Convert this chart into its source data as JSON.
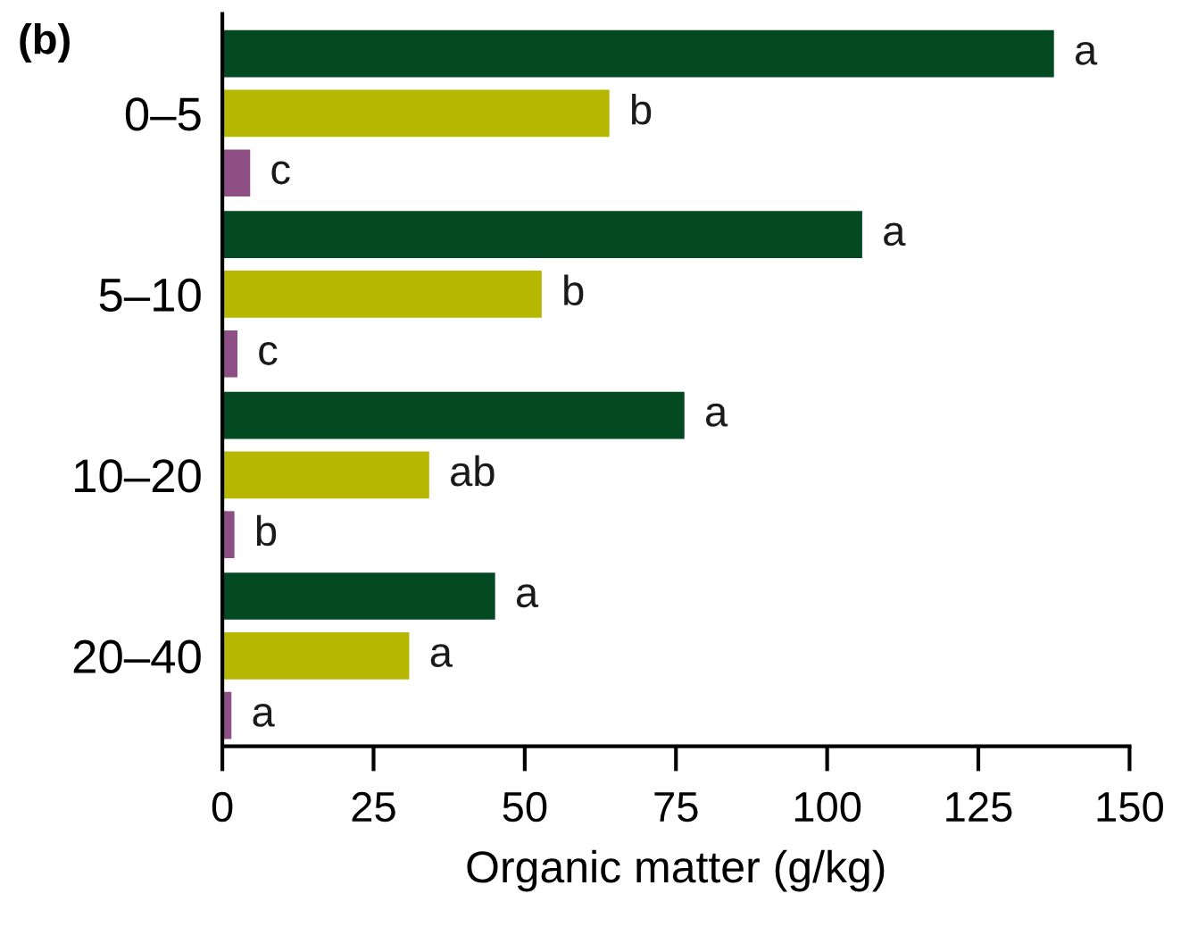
{
  "chart_data": {
    "type": "bar",
    "orientation": "horizontal",
    "title": "(b)",
    "xlabel": "Organic matter (g/kg)",
    "categories": [
      "0–5",
      "5–10",
      "10–20",
      "20–40"
    ],
    "series": [
      {
        "color": "#034a22",
        "values": [
          137.5,
          105.8,
          76.4,
          45.1
        ],
        "value_labels": [
          "a",
          "a",
          "a",
          "a"
        ]
      },
      {
        "color": "#b5b700",
        "values": [
          64,
          52.8,
          34.2,
          30.9
        ],
        "value_labels": [
          "b",
          "b",
          "ab",
          "a"
        ]
      },
      {
        "color": "#8e4f85",
        "values": [
          4.6,
          2.5,
          2.0,
          1.5
        ],
        "value_labels": [
          "c",
          "c",
          "b",
          "a"
        ]
      }
    ],
    "xlim": [
      0,
      150
    ],
    "xticks": [
      0,
      25,
      50,
      75,
      100,
      125,
      150
    ],
    "grid": false,
    "legend": false
  }
}
